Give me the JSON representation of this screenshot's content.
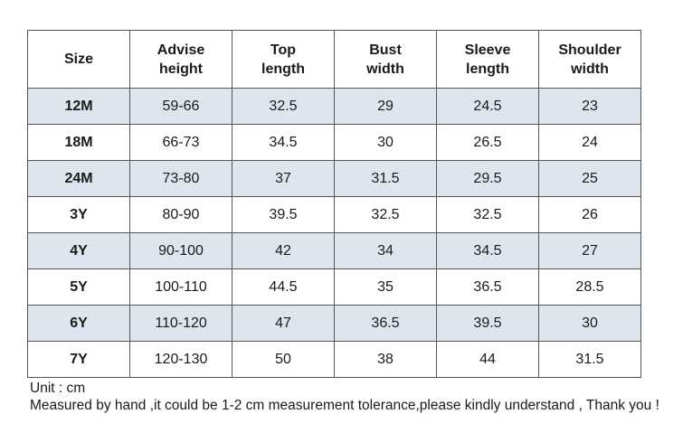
{
  "table": {
    "headers": [
      [
        "Size"
      ],
      [
        "Advise",
        "height"
      ],
      [
        "Top",
        "length"
      ],
      [
        "Bust",
        "width"
      ],
      [
        "Sleeve",
        "length"
      ],
      [
        "Shoulder",
        "width"
      ]
    ],
    "rows": [
      [
        "12M",
        "59-66",
        "32.5",
        "29",
        "24.5",
        "23"
      ],
      [
        "18M",
        "66-73",
        "34.5",
        "30",
        "26.5",
        "24"
      ],
      [
        "24M",
        "73-80",
        "37",
        "31.5",
        "29.5",
        "25"
      ],
      [
        "3Y",
        "80-90",
        "39.5",
        "32.5",
        "32.5",
        "26"
      ],
      [
        "4Y",
        "90-100",
        "42",
        "34",
        "34.5",
        "27"
      ],
      [
        "5Y",
        "100-110",
        "44.5",
        "35",
        "36.5",
        "28.5"
      ],
      [
        "6Y",
        "110-120",
        "47",
        "36.5",
        "39.5",
        "30"
      ],
      [
        "7Y",
        "120-130",
        "50",
        "38",
        "44",
        "31.5"
      ]
    ],
    "shaded_row_color": "#dde6ef",
    "border_color": "#555555"
  },
  "notes": {
    "unit": "Unit : cm",
    "disclaimer": "Measured by hand ,it could be 1-2 cm measurement tolerance,please kindly understand , Thank you !"
  }
}
